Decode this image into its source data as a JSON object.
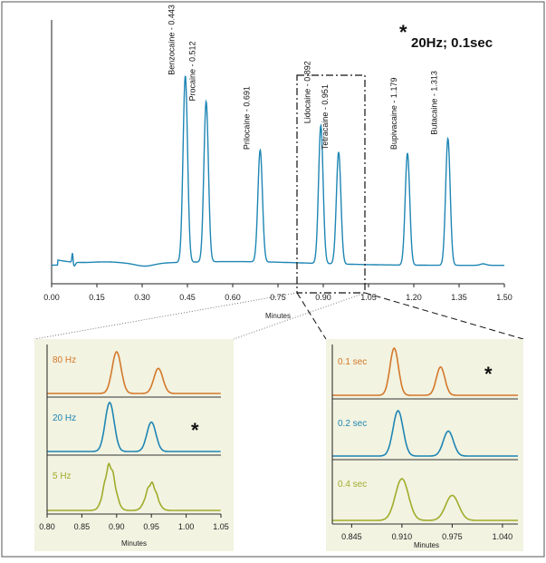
{
  "colors": {
    "main": "#1f86b4",
    "orange": "#d4782a",
    "blue": "#1f86b4",
    "olive": "#a0ac2c",
    "panel_bg": "#f2f3e1",
    "star": "#111111"
  },
  "annotation": {
    "star": "*",
    "text": "20Hz; 0.1sec"
  },
  "chart_data": [
    {
      "type": "line",
      "xlabel": "Minutes",
      "xlim": [
        0.0,
        1.5
      ],
      "xticks": [
        "0.00",
        "0.15",
        "0.30",
        "0.45",
        "0.60",
        "0.75",
        "0.90",
        "1.05",
        "1.20",
        "1.35",
        "1.50"
      ],
      "baseline_level": 0.05,
      "peaks": [
        {
          "label": "Benzocaine - 0.443",
          "x": 0.443,
          "height": 1.0
        },
        {
          "label": "Procaine - 0.512",
          "x": 0.512,
          "height": 0.86
        },
        {
          "label": "Prilocaine - 0.691",
          "x": 0.691,
          "height": 0.6
        },
        {
          "label": "Lidocaine - 0.892",
          "x": 0.892,
          "height": 0.74
        },
        {
          "label": "Tetracaine - 0.951",
          "x": 0.951,
          "height": 0.6
        },
        {
          "label": "Bupivacaine - 1.179",
          "x": 1.179,
          "height": 0.6
        },
        {
          "label": "Butacaine - 1.313",
          "x": 1.313,
          "height": 0.68
        }
      ]
    },
    {
      "type": "line",
      "xlabel": "Minutes",
      "xlim": [
        0.8,
        1.05
      ],
      "xticks": [
        "0.80",
        "0.85",
        "0.90",
        "0.95",
        "1.00",
        "1.05"
      ],
      "traces": [
        {
          "label": "80 Hz",
          "color_key": "orange",
          "marked": false,
          "peaks": [
            {
              "x": 0.9,
              "height": 1.0
            },
            {
              "x": 0.96,
              "height": 0.6
            }
          ]
        },
        {
          "label": "20 Hz",
          "color_key": "blue",
          "marked": true,
          "peaks": [
            {
              "x": 0.89,
              "height": 1.0
            },
            {
              "x": 0.95,
              "height": 0.6
            }
          ]
        },
        {
          "label": "5 Hz",
          "color_key": "olive",
          "marked": false,
          "peaks": [
            {
              "x": 0.89,
              "height": 1.0
            },
            {
              "x": 0.95,
              "height": 0.6
            }
          ]
        }
      ]
    },
    {
      "type": "line",
      "xlabel": "Minutes",
      "xlim": [
        0.82,
        1.06
      ],
      "xticks": [
        "0.845",
        "0.910",
        "0.975",
        "1.040"
      ],
      "traces": [
        {
          "label": "0.1 sec",
          "color_key": "orange",
          "marked": true,
          "peaks": [
            {
              "x": 0.9,
              "height": 1.0
            },
            {
              "x": 0.96,
              "height": 0.6
            }
          ]
        },
        {
          "label": "0.2 sec",
          "color_key": "blue",
          "marked": false,
          "peaks": [
            {
              "x": 0.905,
              "height": 1.0
            },
            {
              "x": 0.97,
              "height": 0.55
            }
          ]
        },
        {
          "label": "0.4 sec",
          "color_key": "olive",
          "marked": false,
          "peaks": [
            {
              "x": 0.91,
              "height": 1.0
            },
            {
              "x": 0.975,
              "height": 0.6
            }
          ]
        }
      ]
    }
  ]
}
